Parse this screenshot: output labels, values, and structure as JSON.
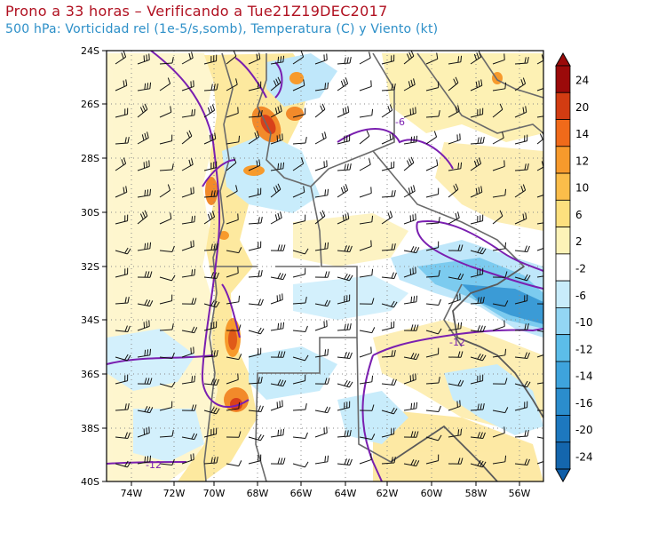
{
  "header": {
    "title": "Prono a 33 horas – Verificando a Tue21Z19DEC2017",
    "subtitle": "500 hPa: Vorticidad rel (1e-5/s,somb), Temperatura (C) y Viento (kt)"
  },
  "map": {
    "lat_labels": [
      "24S",
      "26S",
      "28S",
      "30S",
      "32S",
      "34S",
      "36S",
      "38S",
      "40S"
    ],
    "lon_labels": [
      "74W",
      "72W",
      "70W",
      "68W",
      "66W",
      "64W",
      "62W",
      "60W",
      "58W",
      "56W"
    ],
    "contour_labels": [
      "-6",
      "-12",
      "-12"
    ]
  },
  "colorbar": {
    "labels": [
      "24",
      "20",
      "14",
      "12",
      "10",
      "6",
      "2",
      "-2",
      "-6",
      "-10",
      "-12",
      "-14",
      "-16",
      "-20",
      "-24"
    ],
    "colors": [
      "#9b0a0a",
      "#d23c12",
      "#f06a1a",
      "#f79a2c",
      "#fbbd4a",
      "#fde07e",
      "#fdf3b8",
      "#ffffff",
      "#c8ecfb",
      "#93d6f4",
      "#5cbde9",
      "#3ea3dc",
      "#2b8dcd",
      "#1d78bf",
      "#1466ad"
    ]
  }
}
